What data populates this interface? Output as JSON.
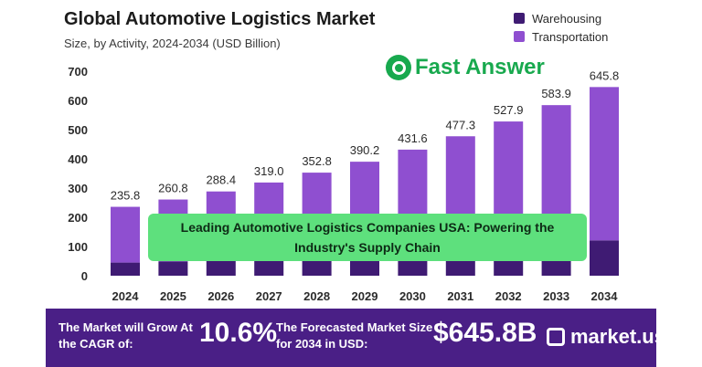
{
  "chart_data": {
    "type": "bar",
    "title": "Global Automotive Logistics Market",
    "subtitle": "Size, by Activity, 2024-2034 (USD Billion)",
    "categories": [
      "2024",
      "2025",
      "2026",
      "2027",
      "2028",
      "2029",
      "2030",
      "2031",
      "2032",
      "2033",
      "2034"
    ],
    "series": [
      {
        "name": "Warehousing",
        "values": [
          45,
          49,
          55,
          60,
          66,
          73,
          81,
          90,
          99,
          110,
          121
        ]
      },
      {
        "name": "Transportation",
        "values": [
          190.8,
          211.8,
          233.4,
          259.0,
          286.8,
          317.2,
          350.6,
          387.3,
          428.9,
          473.9,
          524.8
        ]
      }
    ],
    "totals": [
      "235.8",
      "260.8",
      "288.4",
      "319.0",
      "352.8",
      "390.2",
      "431.6",
      "477.3",
      "527.9",
      "583.9",
      "645.8"
    ],
    "yticks": [
      "0",
      "100",
      "200",
      "300",
      "400",
      "500",
      "600",
      "700"
    ],
    "ylim": [
      0,
      700
    ],
    "stacked": true,
    "grid": false,
    "legend_position": "top-right",
    "colors": {
      "Warehousing": "#3f1b73",
      "Transportation": "#8f4fd0"
    }
  },
  "legend": {
    "warehousing": "Warehousing",
    "transportation": "Transportation"
  },
  "brand": {
    "text": "Fast Answer",
    "color": "#18a94e"
  },
  "overlay": {
    "text": "Leading Automotive Logistics Companies USA: Powering the Industry's Supply Chain"
  },
  "footer": {
    "cagr_label": "The Market will Grow At the CAGR of:",
    "cagr_value": "10.6%",
    "forecast_label": "The Forecasted Market Size for 2034 in USD:",
    "forecast_value": "$645.8B",
    "logo": "market.us"
  }
}
